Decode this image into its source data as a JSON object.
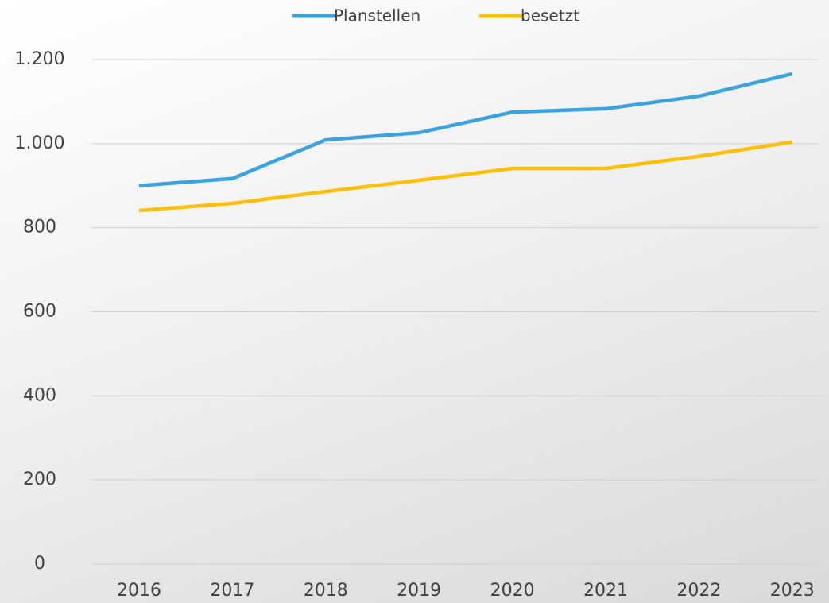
{
  "chart_data": {
    "type": "line",
    "categories": [
      "2016",
      "2017",
      "2018",
      "2019",
      "2020",
      "2021",
      "2022",
      "2023"
    ],
    "series": [
      {
        "name": "Planstellen",
        "color": "#3ba3e0",
        "values": [
          900,
          917,
          1009,
          1026,
          1075,
          1083,
          1113,
          1166
        ]
      },
      {
        "name": "besetzt",
        "color": "#ffc000",
        "values": [
          841,
          858,
          886,
          913,
          941,
          941,
          970,
          1004
        ]
      }
    ],
    "ylim": [
      0,
      1200
    ],
    "yticks": [
      0,
      200,
      400,
      600,
      800,
      {
        "value": 1000,
        "label": "1.000"
      },
      {
        "value": 1200,
        "label": "1.200"
      }
    ],
    "grid": true,
    "legend": "top"
  }
}
